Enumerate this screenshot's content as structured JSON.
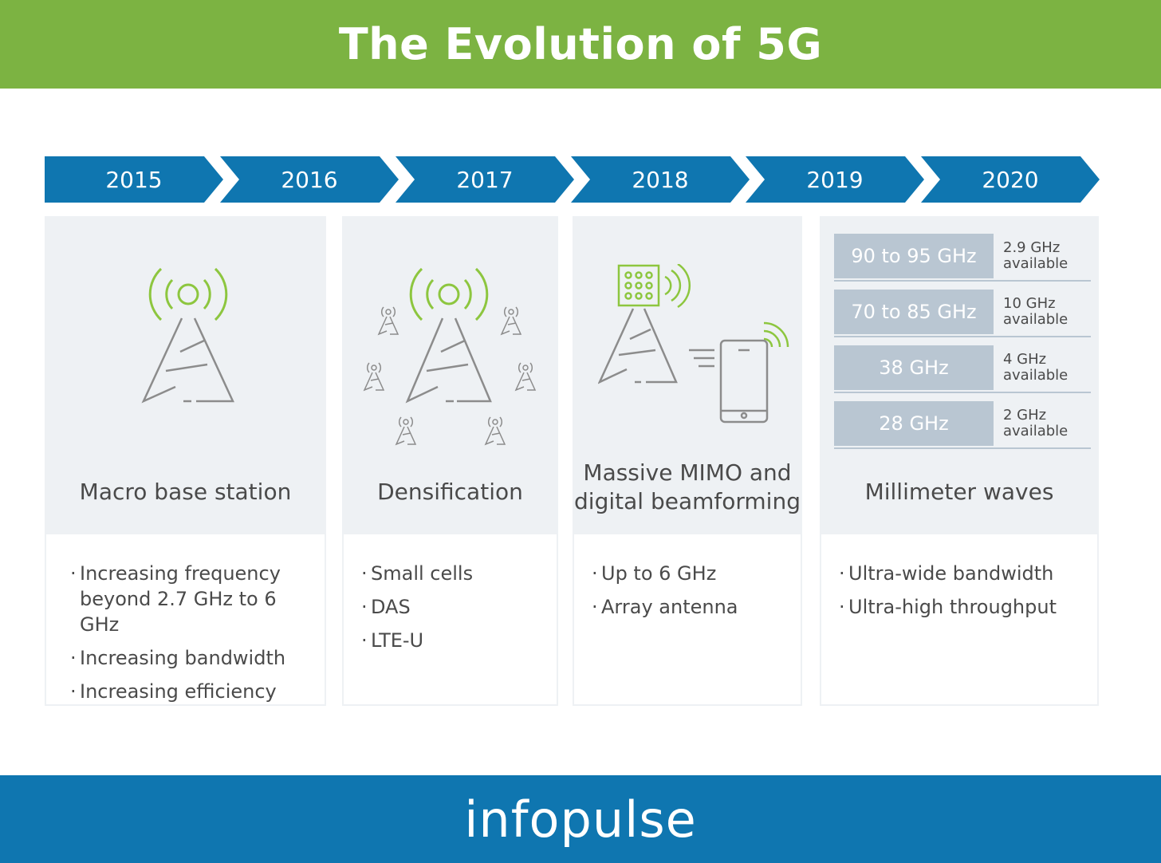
{
  "header": {
    "title": "The Evolution of 5G"
  },
  "timeline": {
    "years": [
      "2015",
      "2016",
      "2017",
      "2018",
      "2019",
      "2020"
    ]
  },
  "cards": [
    {
      "title": "Macro base station",
      "bullets": [
        "Increasing frequency beyond 2.7 GHz to 6 GHz",
        "Increasing bandwidth",
        "Increasing efficiency"
      ]
    },
    {
      "title": "Densification",
      "bullets": [
        "Small cells",
        "DAS",
        "LTE-U"
      ]
    },
    {
      "title_line1": "Massive MIMO and",
      "title_line2": "digital beamforming",
      "bullets": [
        "Up to 6 GHz",
        "Array antenna"
      ]
    },
    {
      "title": "Millimeter waves",
      "bullets": [
        "Ultra-wide bandwidth",
        "Ultra-high throughput"
      ],
      "frequencies": [
        {
          "band": "90 to 95 GHz",
          "avail_line1": "2.9 GHz",
          "avail_line2": "available"
        },
        {
          "band": "70 to 85 GHz",
          "avail_line1": "10 GHz",
          "avail_line2": "available"
        },
        {
          "band": "38 GHz",
          "avail_line1": "4 GHz",
          "avail_line2": "available"
        },
        {
          "band": "28 GHz",
          "avail_line1": "2 GHz",
          "avail_line2": "available"
        }
      ]
    }
  ],
  "footer": {
    "logo": "infopulse"
  },
  "colors": {
    "green": "#7cb342",
    "blue": "#0f76b0",
    "panel": "#eef1f4",
    "gray_band": "#b9c6d2",
    "icon_gray": "#8c8c8c",
    "icon_green": "#8dc63f"
  },
  "icons": [
    "cell-tower-icon",
    "small-cell-tower-icon",
    "antenna-array-icon",
    "smartphone-icon"
  ]
}
